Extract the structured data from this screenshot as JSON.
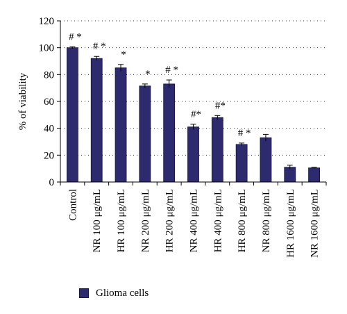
{
  "chart_data": {
    "type": "bar",
    "categories": [
      "Control",
      "NR 100 μg/mL",
      "HR 100 μg/mL",
      "NR 200 μg/mL",
      "HR 200 μg/mL",
      "NR 400 μg/mL",
      "HR 400 μg/mL",
      "HR 800 μg/mL",
      "NR 800 μg/mL",
      "HR 1600 μg/mL",
      "NR 1600 μg/mL"
    ],
    "series": [
      {
        "name": "Glioma cells",
        "values": [
          100,
          92,
          85,
          71.5,
          73,
          41,
          48,
          28,
          33,
          11,
          10.5
        ],
        "errors": [
          0.7,
          1.5,
          2.5,
          1.5,
          3,
          2,
          1.5,
          1,
          2.5,
          1.5,
          0.5
        ]
      }
    ],
    "annotations": [
      "# *",
      "# *",
      "*",
      "*",
      "# *",
      "#*",
      "#*",
      "# *",
      "",
      "",
      ""
    ],
    "ylabel": "% of viability",
    "xlabel": "",
    "title": "",
    "ylim": [
      0,
      120
    ],
    "yticks": [
      0,
      20,
      40,
      60,
      80,
      100,
      120
    ],
    "grid": "horizontal dotted",
    "legend_position": "bottom-left",
    "colors": {
      "bar": "#2e2a6e",
      "bar_edge": "#15133d",
      "axis": "#000000",
      "grid": "#333333"
    }
  }
}
